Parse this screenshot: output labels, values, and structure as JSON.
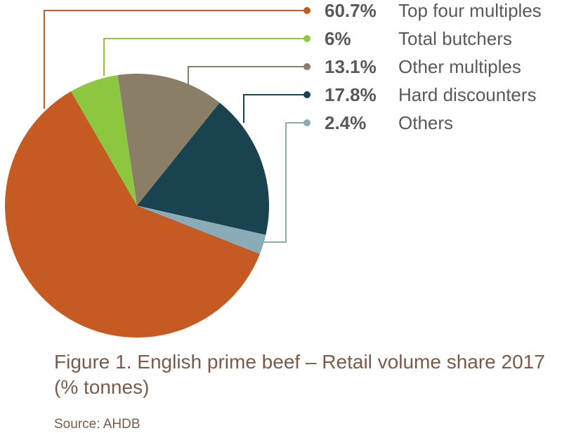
{
  "chart_data": {
    "type": "pie",
    "title": "Figure 1. English prime beef – Retail volume share 2017 (% tonnes)",
    "source": "Source: AHDB",
    "categories": [
      "Total butchers",
      "Other multiples",
      "Hard discounters",
      "Others",
      "Top four multiples"
    ],
    "values": [
      6,
      13.1,
      17.8,
      2.4,
      60.7
    ],
    "value_labels": [
      "6%",
      "13.1%",
      "17.8%",
      "2.4%",
      "60.7%"
    ],
    "colors": [
      "#8dc63f",
      "#8a7e66",
      "#18434f",
      "#8aacb8",
      "#c55a23"
    ]
  }
}
